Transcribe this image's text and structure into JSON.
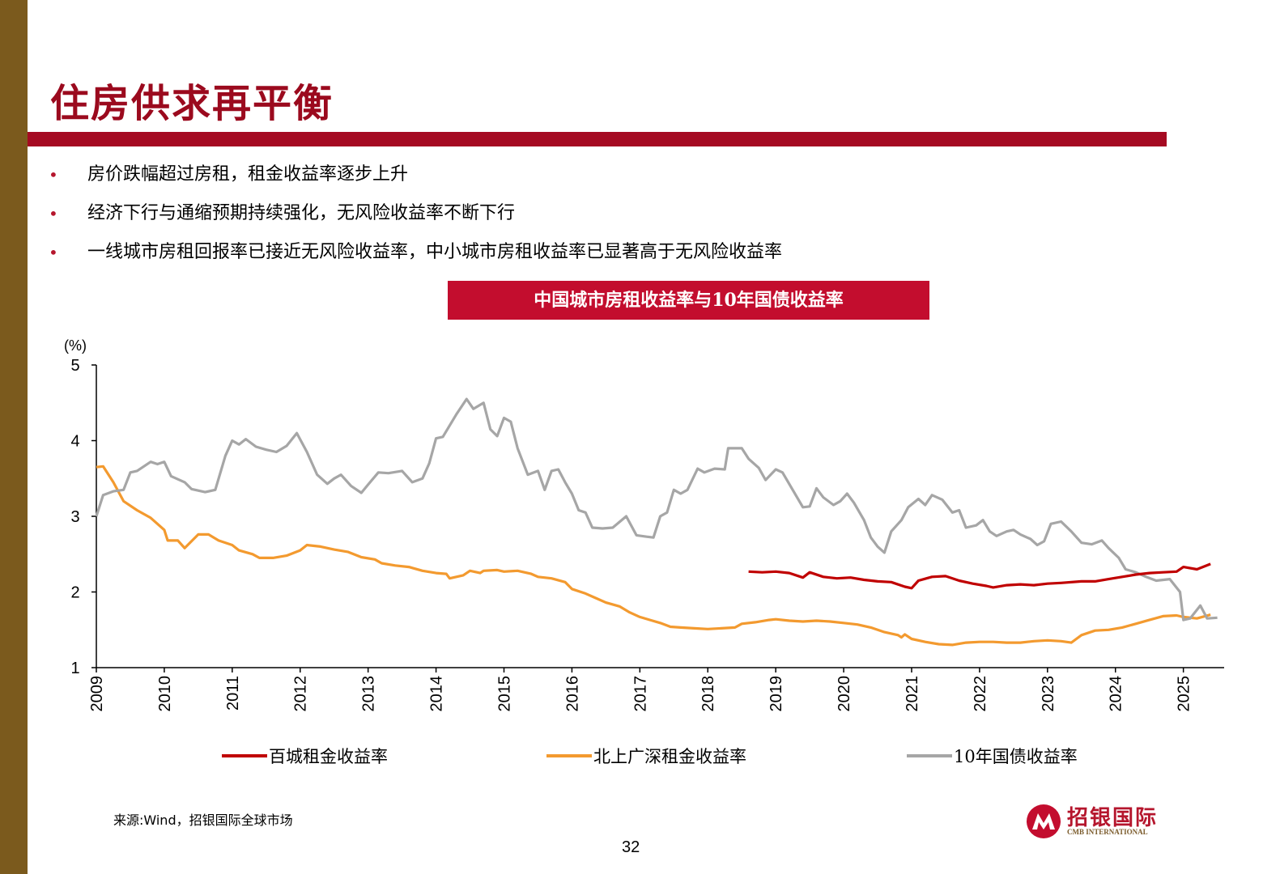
{
  "slide": {
    "title": "住房供求再平衡",
    "bullets": [
      "房价跌幅超过房租，租金收益率逐步上升",
      "经济下行与通缩预期持续强化，无风险收益率不断下行",
      "一线城市房租回报率已接近无风险收益率，中小城市房租收益率已显著高于无风险收益率"
    ],
    "bullet_marker": "•",
    "source": "来源:Wind，招银国际全球市场",
    "page_number": "32",
    "logo": {
      "name": "招银国际",
      "sub": "CMB INTERNATIONAL"
    },
    "colors": {
      "side_bar": "#7b5a1d",
      "title": "#9b0a1e",
      "rule": "#a50a22",
      "chart_title_bg": "#c30d2e"
    }
  },
  "chart_data": {
    "type": "line",
    "title": "中国城市房租收益率与10年国债收益率",
    "ylabel": "(%)",
    "ylim": [
      1,
      5
    ],
    "yticks": [
      "1",
      "2",
      "3",
      "4",
      "5"
    ],
    "xlim": [
      2009,
      2025.6
    ],
    "xticks": [
      "2009",
      "2010",
      "2011",
      "2012",
      "2013",
      "2014",
      "2015",
      "2016",
      "2017",
      "2018",
      "2019",
      "2020",
      "2021",
      "2022",
      "2023",
      "2024",
      "2025"
    ],
    "grid": false,
    "legend_position": "bottom",
    "series": [
      {
        "name": "百城租金收益率",
        "color": "#c00000",
        "points": [
          [
            2018.6,
            2.27
          ],
          [
            2018.8,
            2.26
          ],
          [
            2019.0,
            2.27
          ],
          [
            2019.2,
            2.25
          ],
          [
            2019.4,
            2.19
          ],
          [
            2019.5,
            2.26
          ],
          [
            2019.7,
            2.2
          ],
          [
            2019.9,
            2.18
          ],
          [
            2020.1,
            2.19
          ],
          [
            2020.3,
            2.16
          ],
          [
            2020.5,
            2.14
          ],
          [
            2020.7,
            2.13
          ],
          [
            2020.9,
            2.07
          ],
          [
            2021.0,
            2.05
          ],
          [
            2021.1,
            2.15
          ],
          [
            2021.3,
            2.2
          ],
          [
            2021.5,
            2.21
          ],
          [
            2021.7,
            2.15
          ],
          [
            2021.9,
            2.11
          ],
          [
            2022.1,
            2.08
          ],
          [
            2022.2,
            2.06
          ],
          [
            2022.4,
            2.09
          ],
          [
            2022.6,
            2.1
          ],
          [
            2022.8,
            2.09
          ],
          [
            2023.0,
            2.11
          ],
          [
            2023.2,
            2.12
          ],
          [
            2023.5,
            2.14
          ],
          [
            2023.7,
            2.14
          ],
          [
            2023.9,
            2.17
          ],
          [
            2024.1,
            2.2
          ],
          [
            2024.3,
            2.23
          ],
          [
            2024.5,
            2.25
          ],
          [
            2024.7,
            2.26
          ],
          [
            2024.9,
            2.27
          ],
          [
            2025.0,
            2.33
          ],
          [
            2025.2,
            2.3
          ],
          [
            2025.4,
            2.37
          ]
        ]
      },
      {
        "name": "北上广深租金收益率",
        "color": "#f39a2f",
        "points": [
          [
            2009.0,
            3.65
          ],
          [
            2009.1,
            3.66
          ],
          [
            2009.25,
            3.45
          ],
          [
            2009.4,
            3.2
          ],
          [
            2009.6,
            3.08
          ],
          [
            2009.8,
            2.98
          ],
          [
            2010.0,
            2.82
          ],
          [
            2010.05,
            2.68
          ],
          [
            2010.2,
            2.68
          ],
          [
            2010.3,
            2.58
          ],
          [
            2010.5,
            2.76
          ],
          [
            2010.65,
            2.76
          ],
          [
            2010.8,
            2.68
          ],
          [
            2011.0,
            2.62
          ],
          [
            2011.1,
            2.55
          ],
          [
            2011.3,
            2.5
          ],
          [
            2011.4,
            2.45
          ],
          [
            2011.6,
            2.45
          ],
          [
            2011.8,
            2.48
          ],
          [
            2012.0,
            2.55
          ],
          [
            2012.1,
            2.62
          ],
          [
            2012.3,
            2.6
          ],
          [
            2012.5,
            2.56
          ],
          [
            2012.7,
            2.53
          ],
          [
            2012.9,
            2.46
          ],
          [
            2013.1,
            2.43
          ],
          [
            2013.2,
            2.38
          ],
          [
            2013.4,
            2.35
          ],
          [
            2013.6,
            2.33
          ],
          [
            2013.8,
            2.28
          ],
          [
            2014.0,
            2.25
          ],
          [
            2014.15,
            2.24
          ],
          [
            2014.2,
            2.18
          ],
          [
            2014.4,
            2.22
          ],
          [
            2014.5,
            2.28
          ],
          [
            2014.65,
            2.25
          ],
          [
            2014.7,
            2.28
          ],
          [
            2014.9,
            2.29
          ],
          [
            2015.0,
            2.27
          ],
          [
            2015.2,
            2.28
          ],
          [
            2015.4,
            2.24
          ],
          [
            2015.5,
            2.2
          ],
          [
            2015.7,
            2.18
          ],
          [
            2015.9,
            2.13
          ],
          [
            2016.0,
            2.04
          ],
          [
            2016.2,
            1.98
          ],
          [
            2016.35,
            1.92
          ],
          [
            2016.5,
            1.86
          ],
          [
            2016.7,
            1.81
          ],
          [
            2016.85,
            1.73
          ],
          [
            2017.0,
            1.67
          ],
          [
            2017.15,
            1.63
          ],
          [
            2017.3,
            1.59
          ],
          [
            2017.45,
            1.54
          ],
          [
            2017.6,
            1.53
          ],
          [
            2017.8,
            1.52
          ],
          [
            2018.0,
            1.51
          ],
          [
            2018.2,
            1.52
          ],
          [
            2018.4,
            1.53
          ],
          [
            2018.5,
            1.58
          ],
          [
            2018.7,
            1.6
          ],
          [
            2018.9,
            1.63
          ],
          [
            2019.0,
            1.64
          ],
          [
            2019.2,
            1.62
          ],
          [
            2019.4,
            1.61
          ],
          [
            2019.6,
            1.62
          ],
          [
            2019.8,
            1.61
          ],
          [
            2020.0,
            1.59
          ],
          [
            2020.2,
            1.57
          ],
          [
            2020.4,
            1.53
          ],
          [
            2020.6,
            1.47
          ],
          [
            2020.8,
            1.43
          ],
          [
            2020.85,
            1.4
          ],
          [
            2020.9,
            1.44
          ],
          [
            2021.0,
            1.38
          ],
          [
            2021.2,
            1.34
          ],
          [
            2021.4,
            1.31
          ],
          [
            2021.6,
            1.3
          ],
          [
            2021.8,
            1.33
          ],
          [
            2022.0,
            1.34
          ],
          [
            2022.2,
            1.34
          ],
          [
            2022.4,
            1.33
          ],
          [
            2022.6,
            1.33
          ],
          [
            2022.8,
            1.35
          ],
          [
            2023.0,
            1.36
          ],
          [
            2023.2,
            1.35
          ],
          [
            2023.35,
            1.33
          ],
          [
            2023.5,
            1.43
          ],
          [
            2023.7,
            1.49
          ],
          [
            2023.9,
            1.5
          ],
          [
            2024.1,
            1.53
          ],
          [
            2024.3,
            1.58
          ],
          [
            2024.5,
            1.63
          ],
          [
            2024.7,
            1.68
          ],
          [
            2024.9,
            1.69
          ],
          [
            2025.0,
            1.67
          ],
          [
            2025.2,
            1.65
          ],
          [
            2025.4,
            1.7
          ]
        ]
      },
      {
        "name": "10年国债收益率",
        "color": "#a6a6a6",
        "points": [
          [
            2009.0,
            3.0
          ],
          [
            2009.1,
            3.28
          ],
          [
            2009.25,
            3.33
          ],
          [
            2009.4,
            3.35
          ],
          [
            2009.5,
            3.58
          ],
          [
            2009.6,
            3.6
          ],
          [
            2009.8,
            3.72
          ],
          [
            2009.9,
            3.69
          ],
          [
            2010.0,
            3.72
          ],
          [
            2010.1,
            3.53
          ],
          [
            2010.3,
            3.45
          ],
          [
            2010.4,
            3.36
          ],
          [
            2010.6,
            3.32
          ],
          [
            2010.75,
            3.35
          ],
          [
            2010.9,
            3.8
          ],
          [
            2011.0,
            4.0
          ],
          [
            2011.1,
            3.95
          ],
          [
            2011.2,
            4.02
          ],
          [
            2011.35,
            3.92
          ],
          [
            2011.5,
            3.88
          ],
          [
            2011.65,
            3.85
          ],
          [
            2011.8,
            3.93
          ],
          [
            2011.95,
            4.1
          ],
          [
            2012.1,
            3.85
          ],
          [
            2012.25,
            3.55
          ],
          [
            2012.4,
            3.43
          ],
          [
            2012.5,
            3.5
          ],
          [
            2012.6,
            3.55
          ],
          [
            2012.75,
            3.4
          ],
          [
            2012.9,
            3.31
          ],
          [
            2013.0,
            3.42
          ],
          [
            2013.15,
            3.58
          ],
          [
            2013.3,
            3.57
          ],
          [
            2013.5,
            3.6
          ],
          [
            2013.65,
            3.45
          ],
          [
            2013.8,
            3.5
          ],
          [
            2013.9,
            3.7
          ],
          [
            2014.0,
            4.03
          ],
          [
            2014.1,
            4.05
          ],
          [
            2014.3,
            4.35
          ],
          [
            2014.45,
            4.55
          ],
          [
            2014.55,
            4.42
          ],
          [
            2014.7,
            4.5
          ],
          [
            2014.8,
            4.15
          ],
          [
            2014.9,
            4.06
          ],
          [
            2015.0,
            4.3
          ],
          [
            2015.1,
            4.25
          ],
          [
            2015.2,
            3.9
          ],
          [
            2015.35,
            3.55
          ],
          [
            2015.5,
            3.6
          ],
          [
            2015.6,
            3.35
          ],
          [
            2015.7,
            3.6
          ],
          [
            2015.8,
            3.62
          ],
          [
            2015.9,
            3.45
          ],
          [
            2016.0,
            3.3
          ],
          [
            2016.1,
            3.08
          ],
          [
            2016.2,
            3.05
          ],
          [
            2016.3,
            2.85
          ],
          [
            2016.45,
            2.84
          ],
          [
            2016.6,
            2.85
          ],
          [
            2016.8,
            3.0
          ],
          [
            2016.95,
            2.75
          ],
          [
            2017.1,
            2.73
          ],
          [
            2017.2,
            2.72
          ],
          [
            2017.3,
            3.0
          ],
          [
            2017.4,
            3.05
          ],
          [
            2017.5,
            3.35
          ],
          [
            2017.6,
            3.3
          ],
          [
            2017.7,
            3.35
          ],
          [
            2017.85,
            3.63
          ],
          [
            2017.95,
            3.58
          ],
          [
            2018.1,
            3.63
          ],
          [
            2018.25,
            3.62
          ],
          [
            2018.3,
            3.9
          ],
          [
            2018.5,
            3.9
          ],
          [
            2018.6,
            3.76
          ],
          [
            2018.75,
            3.64
          ],
          [
            2018.85,
            3.48
          ],
          [
            2019.0,
            3.62
          ],
          [
            2019.1,
            3.58
          ],
          [
            2019.25,
            3.35
          ],
          [
            2019.4,
            3.12
          ],
          [
            2019.5,
            3.13
          ],
          [
            2019.6,
            3.37
          ],
          [
            2019.7,
            3.25
          ],
          [
            2019.85,
            3.15
          ],
          [
            2019.95,
            3.2
          ],
          [
            2020.05,
            3.3
          ],
          [
            2020.15,
            3.18
          ],
          [
            2020.3,
            2.95
          ],
          [
            2020.4,
            2.72
          ],
          [
            2020.5,
            2.6
          ],
          [
            2020.6,
            2.52
          ],
          [
            2020.7,
            2.8
          ],
          [
            2020.85,
            2.95
          ],
          [
            2020.95,
            3.12
          ],
          [
            2021.1,
            3.23
          ],
          [
            2021.2,
            3.15
          ],
          [
            2021.3,
            3.28
          ],
          [
            2021.45,
            3.22
          ],
          [
            2021.6,
            3.05
          ],
          [
            2021.7,
            3.08
          ],
          [
            2021.8,
            2.85
          ],
          [
            2021.95,
            2.88
          ],
          [
            2022.05,
            2.95
          ],
          [
            2022.15,
            2.8
          ],
          [
            2022.25,
            2.74
          ],
          [
            2022.4,
            2.8
          ],
          [
            2022.5,
            2.82
          ],
          [
            2022.6,
            2.76
          ],
          [
            2022.75,
            2.7
          ],
          [
            2022.85,
            2.62
          ],
          [
            2022.95,
            2.67
          ],
          [
            2023.05,
            2.9
          ],
          [
            2023.2,
            2.93
          ],
          [
            2023.35,
            2.8
          ],
          [
            2023.5,
            2.65
          ],
          [
            2023.65,
            2.63
          ],
          [
            2023.8,
            2.68
          ],
          [
            2023.9,
            2.58
          ],
          [
            2024.05,
            2.45
          ],
          [
            2024.15,
            2.3
          ],
          [
            2024.3,
            2.26
          ],
          [
            2024.45,
            2.2
          ],
          [
            2024.6,
            2.15
          ],
          [
            2024.8,
            2.17
          ],
          [
            2024.95,
            2.0
          ],
          [
            2025.0,
            1.63
          ],
          [
            2025.1,
            1.65
          ],
          [
            2025.25,
            1.82
          ],
          [
            2025.35,
            1.65
          ],
          [
            2025.5,
            1.66
          ]
        ]
      }
    ]
  }
}
